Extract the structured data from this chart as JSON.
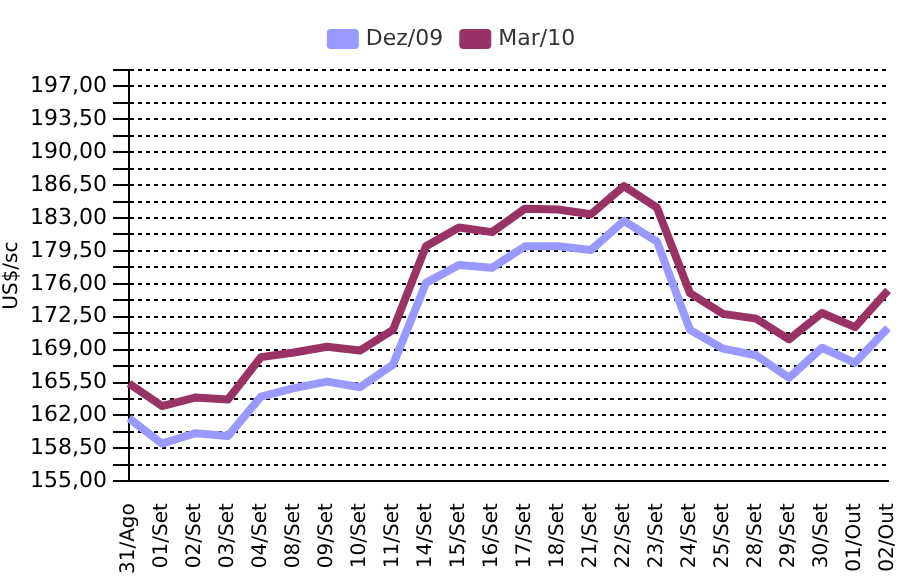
{
  "chart_data": {
    "type": "line",
    "ylabel": "US$/sc",
    "categories": [
      "31/Ago",
      "01/Set",
      "02/Set",
      "03/Set",
      "04/Set",
      "08/Set",
      "09/Set",
      "10/Set",
      "11/Set",
      "14/Set",
      "15/Set",
      "16/Set",
      "17/Set",
      "18/Set",
      "21/Set",
      "22/Set",
      "23/Set",
      "24/Set",
      "25/Set",
      "28/Set",
      "29/Set",
      "30/Set",
      "01/Out",
      "02/Out"
    ],
    "series": [
      {
        "name": "Dez/09",
        "color": "#9999ff",
        "values": [
          161.7,
          159.0,
          160.1,
          159.8,
          164.0,
          164.9,
          165.6,
          165.0,
          167.4,
          176.1,
          178.0,
          177.7,
          180.0,
          180.0,
          179.6,
          182.7,
          180.5,
          171.1,
          169.1,
          168.4,
          166.0,
          169.2,
          167.6,
          171.3
        ]
      },
      {
        "name": "Mar/10",
        "color": "#993366",
        "values": [
          165.4,
          163.0,
          163.9,
          163.7,
          168.2,
          168.7,
          169.3,
          168.9,
          171.1,
          180.0,
          182.0,
          181.5,
          184.0,
          183.9,
          183.4,
          186.4,
          184.1,
          175.0,
          172.8,
          172.3,
          170.1,
          172.9,
          171.4,
          175.3
        ]
      }
    ],
    "ylim": [
      155,
      198.75
    ],
    "yticks": [
      {
        "value": 155,
        "label": "155,00"
      },
      {
        "value": 156.75,
        "label": null
      },
      {
        "value": 158.5,
        "label": "158,50"
      },
      {
        "value": 160.25,
        "label": null
      },
      {
        "value": 162,
        "label": "162,00"
      },
      {
        "value": 163.75,
        "label": null
      },
      {
        "value": 165.5,
        "label": "165,50"
      },
      {
        "value": 167.25,
        "label": null
      },
      {
        "value": 169,
        "label": "169,00"
      },
      {
        "value": 170.75,
        "label": null
      },
      {
        "value": 172.5,
        "label": "172,50"
      },
      {
        "value": 174.25,
        "label": null
      },
      {
        "value": 176,
        "label": "176,00"
      },
      {
        "value": 177.75,
        "label": null
      },
      {
        "value": 179.5,
        "label": "179,50"
      },
      {
        "value": 181.25,
        "label": null
      },
      {
        "value": 183,
        "label": "183,00"
      },
      {
        "value": 184.75,
        "label": null
      },
      {
        "value": 186.5,
        "label": "186,50"
      },
      {
        "value": 188.25,
        "label": null
      },
      {
        "value": 190,
        "label": "190,00"
      },
      {
        "value": 191.75,
        "label": null
      },
      {
        "value": 193.5,
        "label": "193,50"
      },
      {
        "value": 195.25,
        "label": null
      },
      {
        "value": 197,
        "label": "197,00"
      },
      {
        "value": 198.75,
        "label": null
      }
    ],
    "grid": "y",
    "legend": "top",
    "marker": "none",
    "line_style": "solid"
  }
}
